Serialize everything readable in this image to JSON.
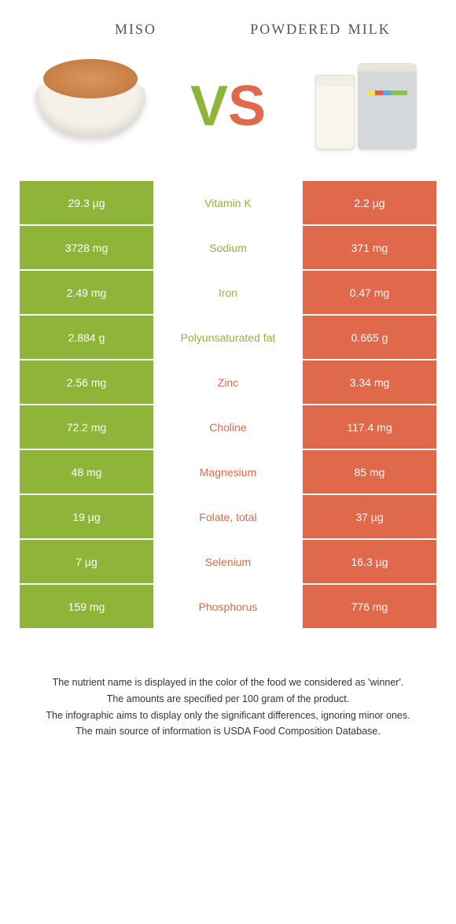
{
  "header": {
    "food1_title": "miso",
    "food2_title": "powdered milk"
  },
  "vs": {
    "v": "V",
    "s": "S"
  },
  "colors": {
    "green": "#8fb43a",
    "orange": "#e0684b",
    "bg": "#ffffff"
  },
  "rows": [
    {
      "left": "29.3 µg",
      "label": "Vitamin K",
      "right": "2.2 µg",
      "winner": "green"
    },
    {
      "left": "3728 mg",
      "label": "Sodium",
      "right": "371 mg",
      "winner": "green"
    },
    {
      "left": "2.49 mg",
      "label": "Iron",
      "right": "0.47 mg",
      "winner": "green"
    },
    {
      "left": "2.884 g",
      "label": "Polyunsaturated fat",
      "right": "0.665 g",
      "winner": "green"
    },
    {
      "left": "2.56 mg",
      "label": "Zinc",
      "right": "3.34 mg",
      "winner": "orange"
    },
    {
      "left": "72.2 mg",
      "label": "Choline",
      "right": "117.4 mg",
      "winner": "orange"
    },
    {
      "left": "48 mg",
      "label": "Magnesium",
      "right": "85 mg",
      "winner": "orange"
    },
    {
      "left": "19 µg",
      "label": "Folate, total",
      "right": "37 µg",
      "winner": "orange"
    },
    {
      "left": "7 µg",
      "label": "Selenium",
      "right": "16.3 µg",
      "winner": "orange"
    },
    {
      "left": "159 mg",
      "label": "Phosphorus",
      "right": "776 mg",
      "winner": "orange"
    }
  ],
  "footnote": {
    "line1": "The nutrient name is displayed in the color of the food we considered as 'winner'.",
    "line2": "The amounts are specified per 100 gram of the product.",
    "line3": "The infographic aims to display only the significant differences, ignoring minor ones.",
    "line4": "The main source of information is USDA Food Composition Database."
  }
}
